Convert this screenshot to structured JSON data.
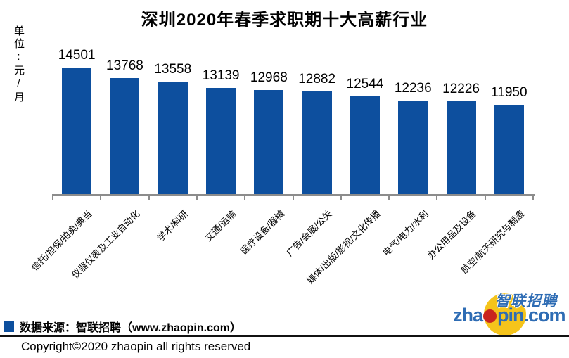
{
  "title": "深圳2020年春季求职期十大高薪行业",
  "unit_label": "单位:元/月",
  "chart_data": {
    "type": "bar",
    "title": "深圳2020年春季求职期十大高薪行业",
    "ylabel": "单位:元/月",
    "categories": [
      "信托/担保/拍卖/典当",
      "仪器仪表及工业自动化",
      "学术/科研",
      "交通/运输",
      "医疗设备/器械",
      "广告/会展/公关",
      "媒体/出版/影视/文化传播",
      "电气/电力/水利",
      "办公用品及设备",
      "航空/航天研究与制造"
    ],
    "values": [
      14501,
      13768,
      13558,
      13139,
      12968,
      12882,
      12544,
      12236,
      12226,
      11950
    ],
    "ylim": [
      5800,
      14800
    ],
    "grid": false,
    "value_labels": true,
    "bar_color": "#0d4f9e",
    "legend_position": "bottom-left"
  },
  "footer": {
    "source_label": "数据来源：智联招聘（www.zhaopin.com）",
    "copyright": "Copyright©2020 zhaopin all rights reserved"
  },
  "logo": {
    "cn_text": "智联招聘",
    "en_text_left": "zha",
    "en_text_right": "pin.com"
  },
  "colors": {
    "bar": "#0d4f9e",
    "axis": "#8c8c8c",
    "text": "#000000",
    "logo_blue": "#2e6cb4",
    "logo_red": "#c8251f",
    "logo_yellow": "#f5c41b"
  }
}
